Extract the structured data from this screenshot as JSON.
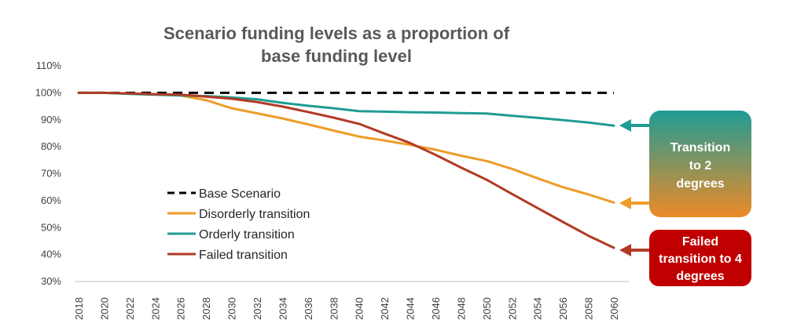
{
  "chart_data": {
    "type": "line",
    "title": [
      "Scenario funding levels as a proportion of",
      "base funding level"
    ],
    "x": [
      2018,
      2020,
      2022,
      2024,
      2026,
      2028,
      2030,
      2032,
      2034,
      2036,
      2038,
      2040,
      2042,
      2044,
      2046,
      2048,
      2050,
      2052,
      2054,
      2056,
      2058,
      2060
    ],
    "x_tick_labels": [
      "2018",
      "2020",
      "2022",
      "2024",
      "2026",
      "2028",
      "2030",
      "2032",
      "2034",
      "2036",
      "2038",
      "2040",
      "2042",
      "2044",
      "2046",
      "2048",
      "2050",
      "2052",
      "2054",
      "2056",
      "2058",
      "2060"
    ],
    "ylim": [
      30,
      110
    ],
    "y_ticks": [
      30,
      40,
      50,
      60,
      70,
      80,
      90,
      100,
      110
    ],
    "y_tick_labels": [
      "30%",
      "40%",
      "50%",
      "60%",
      "70%",
      "80%",
      "90%",
      "100%",
      "110%"
    ],
    "grid": false,
    "legend_position": "lower-left",
    "series": [
      {
        "name": "Base Scenario",
        "color": "#000000",
        "style": "dashed",
        "values": [
          100,
          100,
          100,
          100,
          100,
          100,
          100,
          100,
          100,
          100,
          100,
          100,
          100,
          100,
          100,
          100,
          100,
          100,
          100,
          100,
          100,
          100
        ]
      },
      {
        "name": "Disorderly transition",
        "color": "#ED9C28",
        "style": "solid",
        "values": [
          100,
          100,
          99.7,
          99.5,
          99,
          97.3,
          94.3,
          92.4,
          90.5,
          88.3,
          86,
          83.8,
          82.3,
          80.7,
          78.9,
          76.7,
          74.7,
          71.8,
          68.3,
          65,
          62.3,
          59.3
        ]
      },
      {
        "name": "Orderly transition",
        "color": "#1F9C95",
        "style": "solid",
        "values": [
          100,
          100,
          99.6,
          99.3,
          99,
          98.8,
          98.3,
          97.6,
          96.3,
          95.2,
          94.3,
          93.2,
          93,
          92.8,
          92.7,
          92.5,
          92.3,
          91.5,
          90.7,
          89.9,
          89,
          87.8
        ]
      },
      {
        "name": "Failed transition",
        "color": "#B23A25",
        "style": "solid",
        "values": [
          100,
          100,
          99.8,
          99.5,
          99.3,
          98.6,
          97.8,
          96.6,
          94.9,
          92.9,
          90.8,
          88.5,
          84.9,
          81.4,
          77,
          72.3,
          67.8,
          62.5,
          57.3,
          52.1,
          47,
          42.5
        ]
      }
    ],
    "annotations": [
      {
        "text": [
          "Transition",
          "to 2",
          "degrees"
        ],
        "points_to": [
          "Orderly transition",
          "Disorderly transition"
        ]
      },
      {
        "text": [
          "Failed",
          "transition to 4",
          "degrees"
        ],
        "points_to": [
          "Failed transition"
        ]
      }
    ]
  },
  "colors": {
    "callout_green_top": "#1F9C95",
    "callout_orange_bottom": "#ED8A28",
    "callout_red": "#C00000",
    "arrow_teal": "#1F9C95",
    "arrow_orange": "#ED9C28",
    "arrow_red": "#B23A25"
  }
}
